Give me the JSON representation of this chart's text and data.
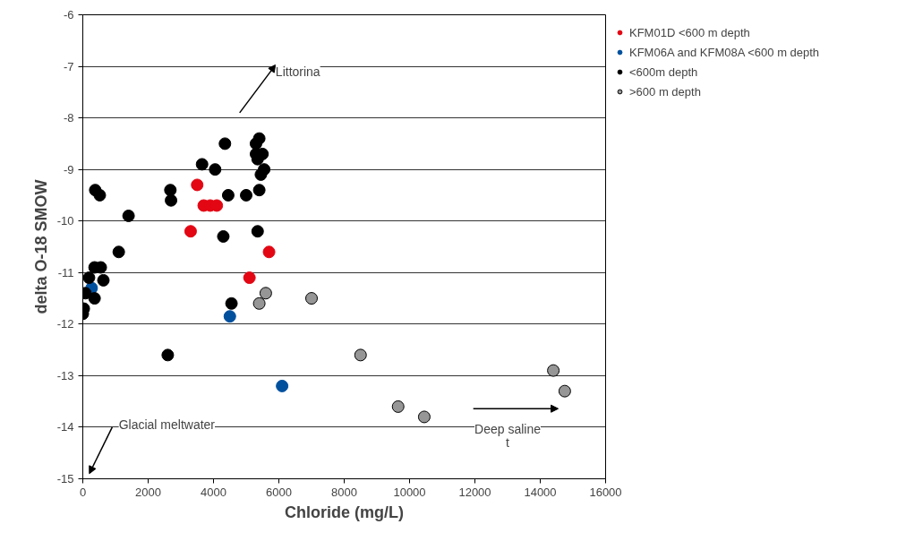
{
  "chart_data": {
    "type": "scatter",
    "xlabel": "Chloride (mg/L)",
    "ylabel": "delta O-18 SMOW",
    "xlim": [
      0,
      16000
    ],
    "xticks": [
      0,
      2000,
      4000,
      6000,
      8000,
      10000,
      12000,
      14000,
      16000
    ],
    "ylim": [
      -15,
      -6
    ],
    "yticks": [
      -15,
      -14,
      -13,
      -12,
      -11,
      -10,
      -9,
      -8,
      -7,
      -6
    ],
    "grid": "y",
    "legend": "right",
    "marker": "circle",
    "series": [
      {
        "name": "KFM01D <600 m depth",
        "color": "#e30613",
        "x": [
          3500,
          3300,
          3700,
          3900,
          4100,
          5700,
          5100
        ],
        "values": [
          -9.3,
          -10.2,
          -9.7,
          -9.7,
          -9.7,
          -10.6,
          -11.1
        ]
      },
      {
        "name": "KFM06A and KFM08A <600 m depth",
        "color": "#00509e",
        "x": [
          270,
          4500,
          6100
        ],
        "values": [
          -11.3,
          -11.85,
          -13.2
        ]
      },
      {
        "name": "<600m depth",
        "color": "#000000",
        "x": [
          380,
          520,
          1400,
          1100,
          360,
          550,
          190,
          630,
          80,
          360,
          30,
          0,
          2680,
          2700,
          2600,
          3650,
          4350,
          4050,
          4450,
          5000,
          5400,
          5350,
          4300,
          4550,
          5400,
          5300,
          5500,
          5300,
          5350,
          5550,
          5450
        ],
        "values": [
          -9.4,
          -9.5,
          -9.9,
          -10.6,
          -10.9,
          -10.9,
          -11.1,
          -11.15,
          -11.4,
          -11.5,
          -11.7,
          -11.8,
          -9.4,
          -9.6,
          -12.6,
          -8.9,
          -8.5,
          -9.0,
          -9.5,
          -9.5,
          -9.4,
          -10.2,
          -10.3,
          -11.6,
          -8.4,
          -8.5,
          -8.7,
          -8.7,
          -8.8,
          -9.0,
          -9.1
        ]
      },
      {
        "name": ">600 m depth",
        "color": "#969696",
        "x": [
          5600,
          5400,
          7000,
          8500,
          9650,
          10450,
          14400,
          14750
        ],
        "values": [
          -11.4,
          -11.6,
          -11.5,
          -12.6,
          -13.6,
          -13.8,
          -12.9,
          -13.3
        ]
      }
    ],
    "annotations": [
      "Littorina",
      "Glacial meltwater",
      "Deep saline\nt"
    ]
  }
}
